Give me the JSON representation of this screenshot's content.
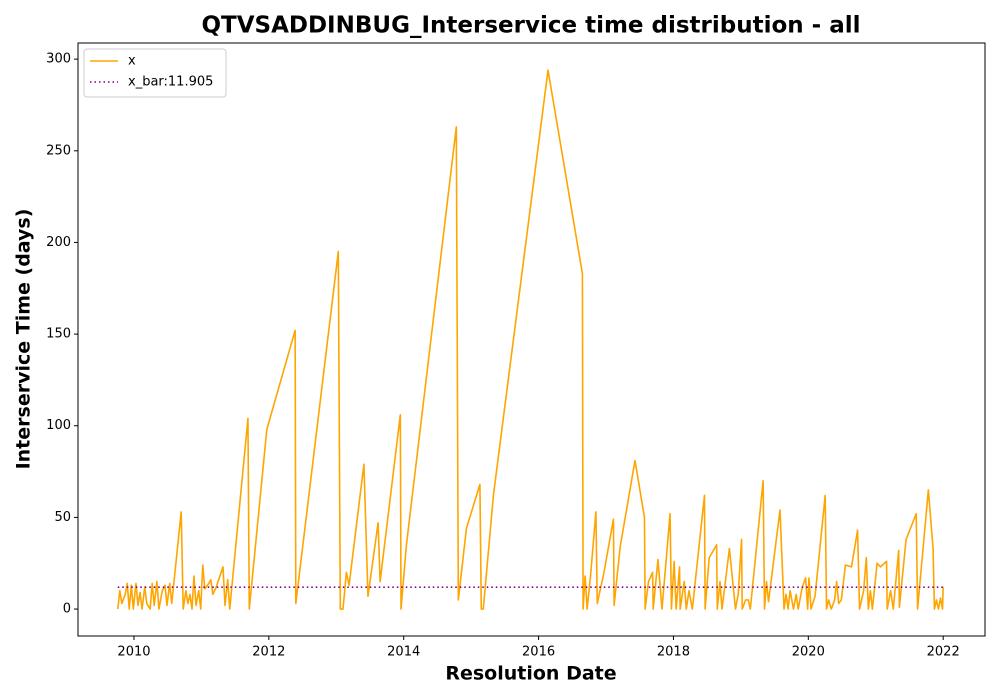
{
  "chart_data": {
    "type": "line",
    "title": "QTVSADDINBUG_Interservice time distribution - all",
    "xlabel": "Resolution Date",
    "ylabel": "Interservice Time (days)",
    "xlim": [
      2009.17,
      2022.62
    ],
    "ylim": [
      -14.7,
      308.8
    ],
    "xticks": [
      2010,
      2012,
      2014,
      2016,
      2018,
      2020,
      2022
    ],
    "yticks": [
      0,
      50,
      100,
      150,
      200,
      250,
      300
    ],
    "grid": false,
    "legend": "upper left",
    "series": [
      {
        "name": "x",
        "color": "#ffa500",
        "style": "solid",
        "x": [
          2009.76,
          2009.79,
          2009.82,
          2009.87,
          2009.9,
          2009.93,
          2009.96,
          2009.99,
          2010.03,
          2010.06,
          2010.09,
          2010.12,
          2010.16,
          2010.19,
          2010.24,
          2010.27,
          2010.3,
          2010.34,
          2010.37,
          2010.42,
          2010.46,
          2010.49,
          2010.53,
          2010.56,
          2010.7,
          2010.73,
          2010.77,
          2010.8,
          2010.83,
          2010.86,
          2010.89,
          2010.92,
          2010.96,
          2010.99,
          2011.02,
          2011.05,
          2011.11,
          2011.14,
          2011.17,
          2011.22,
          2011.32,
          2011.35,
          2011.39,
          2011.42,
          2011.69,
          2011.71,
          2011.97,
          2012.39,
          2012.4,
          2013.03,
          2013.06,
          2013.1,
          2013.15,
          2013.19,
          2013.41,
          2013.47,
          2013.62,
          2013.65,
          2013.95,
          2013.96,
          2014.04,
          2014.78,
          2014.81,
          2014.93,
          2015.13,
          2015.15,
          2015.18,
          2015.33,
          2016.14,
          2016.65,
          2016.66,
          2016.69,
          2016.72,
          2016.77,
          2016.85,
          2016.87,
          2016.97,
          2017.11,
          2017.12,
          2017.21,
          2017.43,
          2017.57,
          2017.58,
          2017.63,
          2017.69,
          2017.7,
          2017.77,
          2017.83,
          2017.95,
          2017.97,
          2018.01,
          2018.04,
          2018.09,
          2018.1,
          2018.16,
          2018.19,
          2018.23,
          2018.28,
          2018.46,
          2018.47,
          2018.53,
          2018.64,
          2018.65,
          2018.69,
          2018.72,
          2018.83,
          2018.92,
          2018.96,
          2019.01,
          2019.02,
          2019.07,
          2019.11,
          2019.14,
          2019.33,
          2019.35,
          2019.38,
          2019.41,
          2019.58,
          2019.64,
          2019.67,
          2019.7,
          2019.73,
          2019.78,
          2019.82,
          2019.85,
          2019.91,
          2019.96,
          2019.99,
          2020.01,
          2020.04,
          2020.1,
          2020.25,
          2020.27,
          2020.3,
          2020.34,
          2020.39,
          2020.42,
          2020.45,
          2020.49,
          2020.55,
          2020.64,
          2020.73,
          2020.76,
          2020.82,
          2020.86,
          2020.89,
          2020.92,
          2020.95,
          2021.02,
          2021.07,
          2021.16,
          2021.17,
          2021.22,
          2021.26,
          2021.34,
          2021.35,
          2021.45,
          2021.6,
          2021.62,
          2021.78,
          2021.85,
          2021.87,
          2021.9,
          2021.93,
          2021.96,
          2021.99,
          2022.0
        ],
        "values": [
          0,
          10,
          3,
          8,
          14,
          0,
          13,
          0,
          14,
          2,
          9,
          0,
          12,
          3,
          0,
          14,
          2,
          15,
          0,
          10,
          13,
          2,
          14,
          3,
          53,
          0,
          10,
          3,
          8,
          0,
          18,
          2,
          10,
          0,
          24,
          11,
          14,
          16,
          8,
          12,
          23,
          2,
          16,
          0,
          104,
          0,
          98,
          152,
          3,
          195,
          0,
          0,
          20,
          13,
          79,
          7,
          47,
          15,
          106,
          0,
          35,
          263,
          5,
          44,
          68,
          0,
          0,
          62,
          294,
          183,
          0,
          18,
          0,
          18,
          53,
          3,
          20,
          49,
          2,
          34,
          81,
          50,
          0,
          15,
          20,
          0,
          27,
          0,
          52,
          0,
          26,
          0,
          23,
          0,
          15,
          0,
          10,
          0,
          62,
          0,
          28,
          35,
          0,
          15,
          0,
          33,
          0,
          8,
          38,
          0,
          5,
          5,
          0,
          70,
          0,
          15,
          4,
          54,
          0,
          8,
          0,
          10,
          0,
          8,
          0,
          12,
          17,
          0,
          17,
          0,
          7,
          62,
          0,
          5,
          0,
          5,
          15,
          3,
          5,
          24,
          23,
          43,
          0,
          10,
          28,
          0,
          10,
          0,
          25,
          23,
          26,
          0,
          10,
          0,
          32,
          1,
          38,
          52,
          0,
          65,
          33,
          0,
          5,
          0,
          6,
          0,
          12
        ]
      },
      {
        "name": "x_bar:11.905",
        "color": "#800080",
        "style": "dotted",
        "x": [
          2009.76,
          2022.0
        ],
        "values": [
          11.905,
          11.905
        ]
      }
    ]
  }
}
